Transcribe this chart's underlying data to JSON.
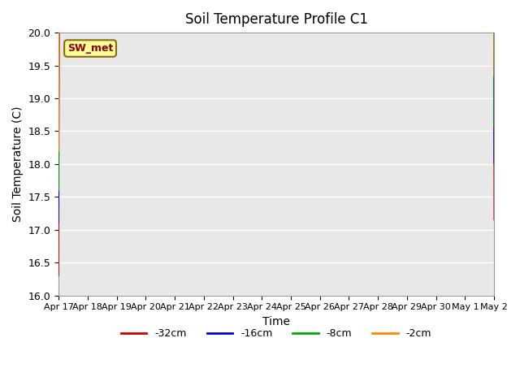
{
  "title": "Soil Temperature Profile C1",
  "xlabel": "Time",
  "ylabel": "Soil Temperature (C)",
  "ylim": [
    16.0,
    20.0
  ],
  "annotation": "SW_met",
  "legend_labels": [
    "-32cm",
    "-16cm",
    "-8cm",
    "-2cm"
  ],
  "legend_colors": [
    "#cc0000",
    "#0000cc",
    "#00aa00",
    "#ff8800"
  ],
  "line_colors": [
    "#cc0000",
    "#0000cc",
    "#00aa00",
    "#ff8800"
  ],
  "bg_color": "#e8e8e8",
  "grid_color": "#ffffff",
  "tick_dates": [
    "Apr 17",
    "Apr 18",
    "Apr 19",
    "Apr 20",
    "Apr 21",
    "Apr 22",
    "Apr 23",
    "Apr 24",
    "Apr 25",
    "Apr 26",
    "Apr 27",
    "Apr 28",
    "Apr 29",
    "Apr 30",
    "May 1",
    "May 2"
  ],
  "yticks": [
    16.0,
    16.5,
    17.0,
    17.5,
    18.0,
    18.5,
    19.0,
    19.5,
    20.0
  ]
}
